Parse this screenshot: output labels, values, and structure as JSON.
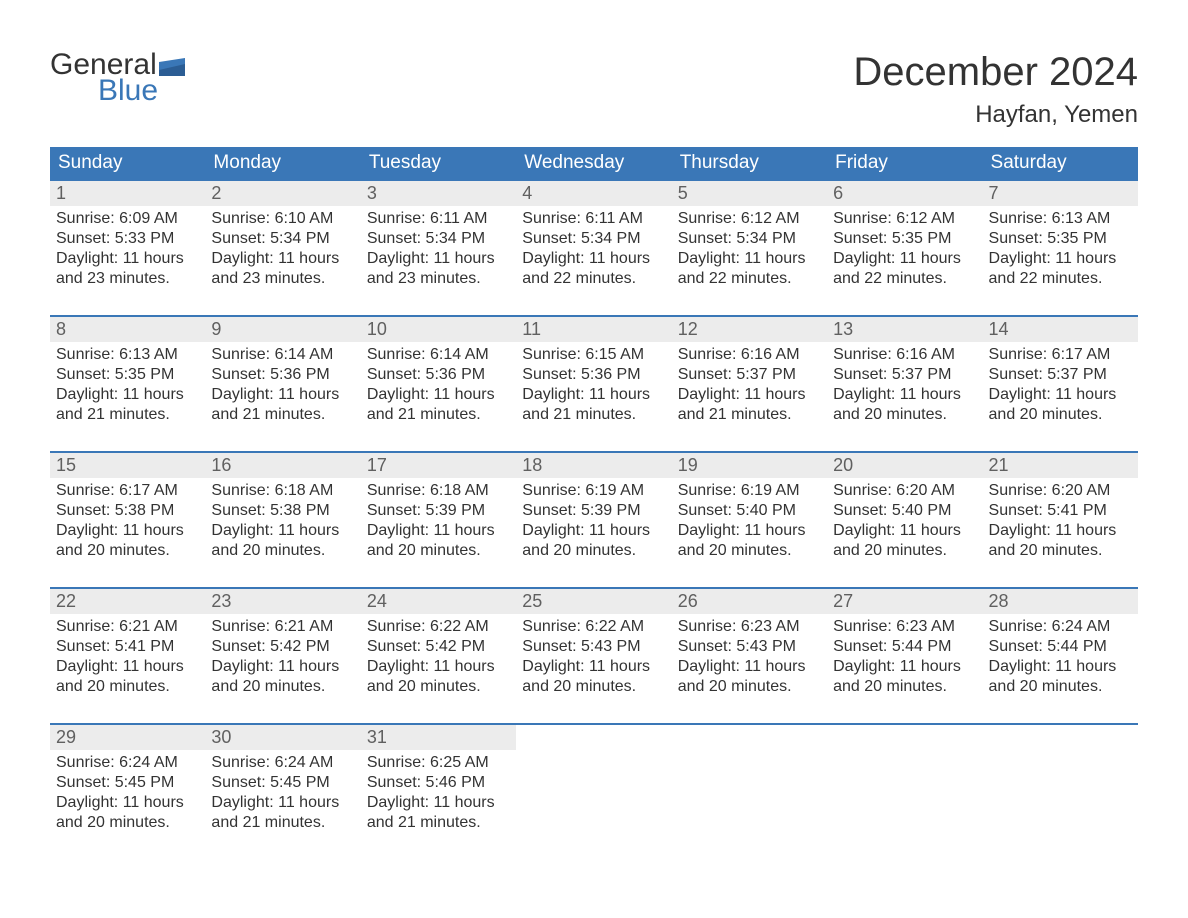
{
  "logo": {
    "text_top": "General",
    "text_bottom": "Blue"
  },
  "title": "December 2024",
  "location": "Hayfan, Yemen",
  "colors": {
    "header_bg": "#3a77b7",
    "header_text": "#ffffff",
    "row_border": "#3a77b7",
    "daynum_bg": "#ececec",
    "daynum_text": "#606060",
    "body_text": "#333333",
    "logo_blue": "#3a77b7",
    "page_bg": "#ffffff"
  },
  "days_of_week": [
    "Sunday",
    "Monday",
    "Tuesday",
    "Wednesday",
    "Thursday",
    "Friday",
    "Saturday"
  ],
  "weeks": [
    [
      {
        "n": "1",
        "sunrise": "6:09 AM",
        "sunset": "5:33 PM",
        "daylight1": "Daylight: 11 hours",
        "daylight2": "and 23 minutes."
      },
      {
        "n": "2",
        "sunrise": "6:10 AM",
        "sunset": "5:34 PM",
        "daylight1": "Daylight: 11 hours",
        "daylight2": "and 23 minutes."
      },
      {
        "n": "3",
        "sunrise": "6:11 AM",
        "sunset": "5:34 PM",
        "daylight1": "Daylight: 11 hours",
        "daylight2": "and 23 minutes."
      },
      {
        "n": "4",
        "sunrise": "6:11 AM",
        "sunset": "5:34 PM",
        "daylight1": "Daylight: 11 hours",
        "daylight2": "and 22 minutes."
      },
      {
        "n": "5",
        "sunrise": "6:12 AM",
        "sunset": "5:34 PM",
        "daylight1": "Daylight: 11 hours",
        "daylight2": "and 22 minutes."
      },
      {
        "n": "6",
        "sunrise": "6:12 AM",
        "sunset": "5:35 PM",
        "daylight1": "Daylight: 11 hours",
        "daylight2": "and 22 minutes."
      },
      {
        "n": "7",
        "sunrise": "6:13 AM",
        "sunset": "5:35 PM",
        "daylight1": "Daylight: 11 hours",
        "daylight2": "and 22 minutes."
      }
    ],
    [
      {
        "n": "8",
        "sunrise": "6:13 AM",
        "sunset": "5:35 PM",
        "daylight1": "Daylight: 11 hours",
        "daylight2": "and 21 minutes."
      },
      {
        "n": "9",
        "sunrise": "6:14 AM",
        "sunset": "5:36 PM",
        "daylight1": "Daylight: 11 hours",
        "daylight2": "and 21 minutes."
      },
      {
        "n": "10",
        "sunrise": "6:14 AM",
        "sunset": "5:36 PM",
        "daylight1": "Daylight: 11 hours",
        "daylight2": "and 21 minutes."
      },
      {
        "n": "11",
        "sunrise": "6:15 AM",
        "sunset": "5:36 PM",
        "daylight1": "Daylight: 11 hours",
        "daylight2": "and 21 minutes."
      },
      {
        "n": "12",
        "sunrise": "6:16 AM",
        "sunset": "5:37 PM",
        "daylight1": "Daylight: 11 hours",
        "daylight2": "and 21 minutes."
      },
      {
        "n": "13",
        "sunrise": "6:16 AM",
        "sunset": "5:37 PM",
        "daylight1": "Daylight: 11 hours",
        "daylight2": "and 20 minutes."
      },
      {
        "n": "14",
        "sunrise": "6:17 AM",
        "sunset": "5:37 PM",
        "daylight1": "Daylight: 11 hours",
        "daylight2": "and 20 minutes."
      }
    ],
    [
      {
        "n": "15",
        "sunrise": "6:17 AM",
        "sunset": "5:38 PM",
        "daylight1": "Daylight: 11 hours",
        "daylight2": "and 20 minutes."
      },
      {
        "n": "16",
        "sunrise": "6:18 AM",
        "sunset": "5:38 PM",
        "daylight1": "Daylight: 11 hours",
        "daylight2": "and 20 minutes."
      },
      {
        "n": "17",
        "sunrise": "6:18 AM",
        "sunset": "5:39 PM",
        "daylight1": "Daylight: 11 hours",
        "daylight2": "and 20 minutes."
      },
      {
        "n": "18",
        "sunrise": "6:19 AM",
        "sunset": "5:39 PM",
        "daylight1": "Daylight: 11 hours",
        "daylight2": "and 20 minutes."
      },
      {
        "n": "19",
        "sunrise": "6:19 AM",
        "sunset": "5:40 PM",
        "daylight1": "Daylight: 11 hours",
        "daylight2": "and 20 minutes."
      },
      {
        "n": "20",
        "sunrise": "6:20 AM",
        "sunset": "5:40 PM",
        "daylight1": "Daylight: 11 hours",
        "daylight2": "and 20 minutes."
      },
      {
        "n": "21",
        "sunrise": "6:20 AM",
        "sunset": "5:41 PM",
        "daylight1": "Daylight: 11 hours",
        "daylight2": "and 20 minutes."
      }
    ],
    [
      {
        "n": "22",
        "sunrise": "6:21 AM",
        "sunset": "5:41 PM",
        "daylight1": "Daylight: 11 hours",
        "daylight2": "and 20 minutes."
      },
      {
        "n": "23",
        "sunrise": "6:21 AM",
        "sunset": "5:42 PM",
        "daylight1": "Daylight: 11 hours",
        "daylight2": "and 20 minutes."
      },
      {
        "n": "24",
        "sunrise": "6:22 AM",
        "sunset": "5:42 PM",
        "daylight1": "Daylight: 11 hours",
        "daylight2": "and 20 minutes."
      },
      {
        "n": "25",
        "sunrise": "6:22 AM",
        "sunset": "5:43 PM",
        "daylight1": "Daylight: 11 hours",
        "daylight2": "and 20 minutes."
      },
      {
        "n": "26",
        "sunrise": "6:23 AM",
        "sunset": "5:43 PM",
        "daylight1": "Daylight: 11 hours",
        "daylight2": "and 20 minutes."
      },
      {
        "n": "27",
        "sunrise": "6:23 AM",
        "sunset": "5:44 PM",
        "daylight1": "Daylight: 11 hours",
        "daylight2": "and 20 minutes."
      },
      {
        "n": "28",
        "sunrise": "6:24 AM",
        "sunset": "5:44 PM",
        "daylight1": "Daylight: 11 hours",
        "daylight2": "and 20 minutes."
      }
    ],
    [
      {
        "n": "29",
        "sunrise": "6:24 AM",
        "sunset": "5:45 PM",
        "daylight1": "Daylight: 11 hours",
        "daylight2": "and 20 minutes."
      },
      {
        "n": "30",
        "sunrise": "6:24 AM",
        "sunset": "5:45 PM",
        "daylight1": "Daylight: 11 hours",
        "daylight2": "and 21 minutes."
      },
      {
        "n": "31",
        "sunrise": "6:25 AM",
        "sunset": "5:46 PM",
        "daylight1": "Daylight: 11 hours",
        "daylight2": "and 21 minutes."
      },
      null,
      null,
      null,
      null
    ]
  ]
}
